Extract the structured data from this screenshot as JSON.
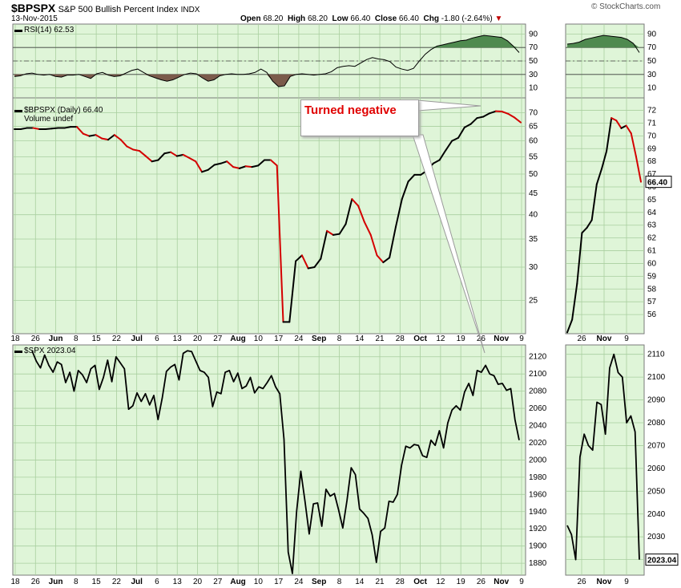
{
  "header": {
    "symbol": "$BPSPX",
    "name": "S&P 500 Bullish Percent Index",
    "exchange": "INDX",
    "date": "13-Nov-2015",
    "open_label": "Open",
    "open": "68.20",
    "high_label": "High",
    "high": "68.20",
    "low_label": "Low",
    "low": "66.40",
    "close_label": "Close",
    "close": "66.40",
    "chg_label": "Chg",
    "chg": "-1.80 (-2.64%)",
    "watermark": "© StockCharts.com"
  },
  "annotation": {
    "text": "Turned negative"
  },
  "colors": {
    "panel_bg": "#dff5d8",
    "grid": "#a9cf9f",
    "up_line": "#000000",
    "down_line": "#d40000",
    "rsi_fill_high": "#4f8a4f",
    "rsi_fill_low": "#7b5b4b",
    "price_label_bg": "#ffffff"
  },
  "chart_data": [
    {
      "type": "line",
      "panel": "rsi",
      "title": "RSI(14) 62.53",
      "y_ticks": [
        90,
        70,
        50,
        30,
        10
      ],
      "ylim": [
        0,
        100
      ],
      "reference_lines": [
        70,
        50,
        30
      ],
      "series": [
        {
          "values": [
            27,
            28,
            31,
            32,
            30,
            29,
            30,
            27,
            26,
            29,
            29,
            30,
            27,
            24,
            31,
            33,
            29,
            27,
            28,
            32,
            36,
            38,
            33,
            28,
            25,
            22,
            20,
            22,
            26,
            30,
            32,
            31,
            25,
            20,
            22,
            28,
            30,
            31,
            30,
            30,
            31,
            33,
            38,
            33,
            20,
            12,
            13,
            27,
            30,
            31,
            30,
            29,
            30,
            31,
            34,
            40,
            42,
            43,
            42,
            47,
            52,
            55,
            53,
            52,
            49,
            41,
            38,
            36,
            39,
            50,
            60,
            67,
            72,
            74,
            76,
            78,
            80,
            81,
            84,
            86,
            88,
            87,
            86,
            85,
            80,
            72,
            62.53
          ]
        }
      ],
      "zoom_values": [
        75,
        76,
        78,
        82,
        84,
        86,
        88,
        87,
        86,
        85,
        82,
        76,
        62.53
      ]
    },
    {
      "type": "line",
      "panel": "bpspx",
      "title": "$BPSPX (Daily) 66.40",
      "subtitle": "Volume undef",
      "log_scale": true,
      "y_ticks": [
        70,
        65,
        60,
        55,
        50,
        45,
        40,
        35,
        30,
        25
      ],
      "ylim": [
        21,
        74
      ],
      "x_tick_labels": [
        "18",
        "26",
        "Jun",
        "8",
        "15",
        "22",
        "Jul",
        "6",
        "13",
        "20",
        "27",
        "Aug",
        "10",
        "17",
        "24",
        "Sep",
        "8",
        "14",
        "21",
        "28",
        "Oct",
        "12",
        "19",
        "26",
        "Nov",
        "9"
      ],
      "values": [
        64,
        64,
        64.4,
        64.4,
        64,
        64,
        64.2,
        64.4,
        64.4,
        64.8,
        64.8,
        62.4,
        61.6,
        62,
        60.8,
        60.4,
        62,
        60.4,
        58.2,
        57.2,
        56.8,
        55.2,
        53.6,
        54,
        56,
        56.4,
        55.2,
        55.6,
        54.6,
        53.6,
        50.6,
        51.2,
        52.6,
        53,
        53.6,
        52,
        51.6,
        52.2,
        52,
        52.4,
        54,
        54,
        52.4,
        22.2,
        22.2,
        31,
        32,
        29.8,
        30,
        31.4,
        36.6,
        35.8,
        36,
        38,
        43.6,
        42,
        38.4,
        35.8,
        32,
        30.8,
        31.6,
        37.4,
        43.6,
        48,
        49.8,
        49.8,
        51,
        53,
        54,
        57,
        60,
        61,
        64.6,
        65.8,
        68,
        68.5,
        69.8,
        70.6,
        70.5,
        69.6,
        68.2,
        66.4
      ],
      "last_price_label": "66.40",
      "zoom_y_ticks": [
        72,
        71,
        70,
        69,
        68,
        67,
        66,
        65,
        64,
        63,
        62,
        61,
        60,
        59,
        58,
        57,
        56
      ],
      "zoom_values": [
        54.6,
        55.6,
        58.4,
        62.4,
        62.8,
        63.4,
        66.2,
        67.4,
        68.8,
        71.4,
        71.2,
        70.6,
        70.8,
        70.2,
        68.4,
        66.4
      ],
      "zoom_x_tick_labels": [
        "26",
        "Nov",
        "9"
      ]
    },
    {
      "type": "line",
      "panel": "spx",
      "title": "$SPX 2023.04",
      "y_ticks": [
        2120,
        2100,
        2080,
        2060,
        2040,
        2020,
        2000,
        1980,
        1960,
        1940,
        1920,
        1900,
        1880
      ],
      "ylim": [
        1868,
        2130
      ],
      "x_tick_labels": [
        "18",
        "26",
        "Jun",
        "8",
        "15",
        "22",
        "Jul",
        "6",
        "13",
        "20",
        "27",
        "Aug",
        "10",
        "17",
        "24",
        "Sep",
        "8",
        "14",
        "21",
        "28",
        "Oct",
        "12",
        "19",
        "26",
        "Nov",
        "9"
      ],
      "values": [
        2127,
        2115,
        2107,
        2122,
        2110,
        2102,
        2114,
        2111,
        2090,
        2102,
        2080,
        2104,
        2099,
        2090,
        2106,
        2110,
        2082,
        2096,
        2116,
        2091,
        2120,
        2113,
        2106,
        2059,
        2063,
        2078,
        2068,
        2077,
        2064,
        2075,
        2047,
        2072,
        2103,
        2108,
        2111,
        2093,
        2124,
        2127,
        2126,
        2115,
        2104,
        2102,
        2096,
        2062,
        2079,
        2077,
        2102,
        2104,
        2091,
        2101,
        2083,
        2086,
        2096,
        2078,
        2085,
        2083,
        2090,
        2098,
        2085,
        2077,
        2024,
        1893,
        1868,
        1940,
        1987,
        1952,
        1914,
        1949,
        1950,
        1923,
        1966,
        1958,
        1961,
        1942,
        1921,
        1953,
        1991,
        1983,
        1943,
        1938,
        1932,
        1913,
        1881,
        1917,
        1921,
        1952,
        1951,
        1960,
        1994,
        2016,
        2014,
        2018,
        2017,
        2005,
        2003,
        2023,
        2017,
        2034,
        2014,
        2043,
        2058,
        2063,
        2058,
        2079,
        2089,
        2075,
        2104,
        2102,
        2110,
        2100,
        2098,
        2088,
        2089,
        2081,
        2083,
        2047,
        2023.04
      ],
      "last_price_label": "2023.04",
      "zoom_y_ticks": [
        2110,
        2100,
        2090,
        2080,
        2070,
        2060,
        2050,
        2040,
        2030,
        2020
      ],
      "zoom_values": [
        2035,
        2031,
        2020,
        2065,
        2075,
        2070,
        2068,
        2089,
        2088,
        2075,
        2104,
        2110,
        2102,
        2100,
        2080,
        2083,
        2076,
        2020
      ]
    }
  ]
}
